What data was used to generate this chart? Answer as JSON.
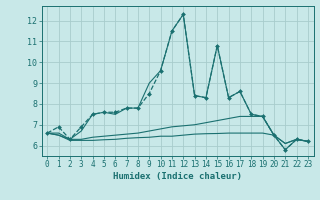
{
  "xlabel": "Humidex (Indice chaleur)",
  "xlim": [
    -0.5,
    23.5
  ],
  "ylim": [
    5.5,
    12.7
  ],
  "xticks": [
    0,
    1,
    2,
    3,
    4,
    5,
    6,
    7,
    8,
    9,
    10,
    11,
    12,
    13,
    14,
    15,
    16,
    17,
    18,
    19,
    20,
    21,
    22,
    23
  ],
  "yticks": [
    6,
    7,
    8,
    9,
    10,
    11,
    12
  ],
  "bg_color": "#c8e8e8",
  "grid_color": "#a8cccc",
  "line_color": "#1a7070",
  "lines": [
    {
      "x": [
        0,
        1,
        2,
        3,
        4,
        5,
        6,
        7,
        8,
        9,
        10,
        11,
        12,
        13,
        14,
        15,
        16,
        17,
        18,
        19,
        20,
        21,
        22,
        23
      ],
      "y": [
        6.6,
        6.9,
        6.3,
        6.9,
        7.5,
        7.6,
        7.6,
        7.8,
        7.8,
        8.5,
        9.6,
        11.5,
        12.3,
        8.4,
        8.3,
        10.8,
        8.3,
        8.6,
        7.5,
        7.4,
        6.5,
        5.8,
        6.3,
        6.2
      ],
      "marker": "D",
      "markersize": 2.0,
      "linewidth": 0.9,
      "linestyle": "--"
    },
    {
      "x": [
        0,
        1,
        2,
        3,
        4,
        5,
        6,
        7,
        8,
        9,
        10,
        11,
        12,
        13,
        14,
        15,
        16,
        17,
        18,
        19,
        20,
        21,
        22,
        23
      ],
      "y": [
        6.6,
        6.6,
        6.3,
        6.7,
        7.5,
        7.6,
        7.5,
        7.8,
        7.8,
        9.0,
        9.6,
        11.5,
        12.3,
        8.4,
        8.3,
        10.8,
        8.3,
        8.6,
        7.5,
        7.4,
        6.5,
        5.8,
        6.3,
        6.2
      ],
      "marker": null,
      "linewidth": 0.8,
      "linestyle": "-"
    },
    {
      "x": [
        0,
        1,
        2,
        3,
        4,
        5,
        6,
        7,
        8,
        9,
        10,
        11,
        12,
        13,
        14,
        15,
        16,
        17,
        18,
        19,
        20,
        21,
        22,
        23
      ],
      "y": [
        6.6,
        6.5,
        6.3,
        6.3,
        6.4,
        6.45,
        6.5,
        6.55,
        6.6,
        6.7,
        6.8,
        6.9,
        6.95,
        7.0,
        7.1,
        7.2,
        7.3,
        7.4,
        7.4,
        7.4,
        6.5,
        6.1,
        6.3,
        6.2
      ],
      "marker": null,
      "linewidth": 0.8,
      "linestyle": "-"
    },
    {
      "x": [
        0,
        1,
        2,
        3,
        4,
        5,
        6,
        7,
        8,
        9,
        10,
        11,
        12,
        13,
        14,
        15,
        16,
        17,
        18,
        19,
        20,
        21,
        22,
        23
      ],
      "y": [
        6.6,
        6.5,
        6.25,
        6.25,
        6.25,
        6.28,
        6.3,
        6.35,
        6.38,
        6.4,
        6.45,
        6.45,
        6.5,
        6.55,
        6.57,
        6.58,
        6.6,
        6.6,
        6.6,
        6.6,
        6.5,
        6.1,
        6.3,
        6.2
      ],
      "marker": null,
      "linewidth": 0.8,
      "linestyle": "-"
    }
  ]
}
